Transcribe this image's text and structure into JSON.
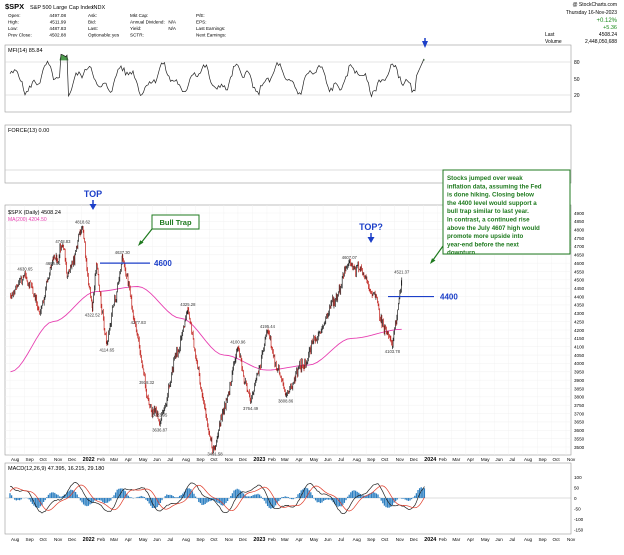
{
  "header": {
    "symbol": "$SPX",
    "name": "S&P 500 Large Cap Index",
    "exchange": "INDX",
    "credit": "@ StockCharts.com",
    "date": "Thursday 16-Nov-2023",
    "change_pct": "+0.12%",
    "change_abs": "+5.36",
    "last_label": "Last",
    "last_value": "4508.24",
    "volume_label": "Volume",
    "volume_value": "2,448,050,688",
    "col1": [
      {
        "k": "Open:",
        "v": "4497.08"
      },
      {
        "k": "High:",
        "v": "4511.99"
      },
      {
        "k": "Low:",
        "v": "4487.83"
      },
      {
        "k": "Prev Close:",
        "v": "4502.88"
      }
    ],
    "col2": [
      {
        "k": "Ask:",
        "v": ""
      },
      {
        "k": "Bid:",
        "v": ""
      },
      {
        "k": "Last:",
        "v": ""
      },
      {
        "k": "Optionable:",
        "v": "yes"
      }
    ],
    "col3": [
      {
        "k": "Mkt Cap:",
        "v": ""
      },
      {
        "k": "Annual Dividend:",
        "v": "N/A"
      },
      {
        "k": "Yield:",
        "v": "N/A"
      },
      {
        "k": "SCTR:",
        "v": ""
      }
    ],
    "col4": [
      {
        "k": "P/E:",
        "v": ""
      },
      {
        "k": "EPS:",
        "v": ""
      },
      {
        "k": "Last Earnings:",
        "v": ""
      },
      {
        "k": "Next Earnings:",
        "v": ""
      }
    ]
  },
  "panels": {
    "mfi_label": "MFI(14) 85.84",
    "mfi_ticks": [
      "80",
      "50",
      "20"
    ],
    "force_label": "FORCE(13) 0.00",
    "price_label": "$SPX (Daily) 4508.24",
    "ma_label": "MA(200) 4204.50",
    "macd_label": "MACD(12,26,9) 47.395, 16.215, 29.180"
  },
  "annotations": {
    "top1": "TOP",
    "top2": "TOP?",
    "bull_trap": "Bull Trap",
    "level_4600": "4600",
    "level_4400": "4400",
    "commentary": "Stocks jumped over weak inflation data, assuming the Fed is done hiking. Closing below the 4400 level would support a bull trap similar to last year. In contrast, a continued rise above the July 4607 high would promote more upside into year-end before the next downturn.",
    "pivots": [
      "4818.62",
      "4748.83",
      "4630.65",
      "4606.81",
      "4637.30",
      "4322.52",
      "4114.65",
      "4277.83",
      "4325.28",
      "3918.32",
      "3723.95",
      "3636.87",
      "3491.58",
      "4100.96",
      "4195.44",
      "3764.49",
      "3808.86",
      "4607.07",
      "4103.78",
      "4521.37"
    ]
  },
  "axes": {
    "months_top": [
      "Aug",
      "Sep",
      "Oct",
      "Nov",
      "Dec",
      "2022",
      "Feb",
      "Mar",
      "Apr",
      "May",
      "Jun",
      "Jul",
      "Aug",
      "Sep",
      "Oct",
      "Nov",
      "Dec",
      "2023",
      "Feb",
      "Mar",
      "Apr",
      "May",
      "Jun",
      "Jul",
      "Aug",
      "Sep",
      "Oct",
      "Nov",
      "Dec",
      "2024",
      "Feb",
      "Mar",
      "Apr",
      "May",
      "Jun",
      "Jul",
      "Aug",
      "Sep",
      "Oct",
      "Nov"
    ],
    "months_bottom": [
      "Aug",
      "Sep",
      "Oct",
      "Nov",
      "Dec",
      "2022",
      "Feb",
      "Mar",
      "Apr",
      "May",
      "Jun",
      "Jul",
      "Aug",
      "Sep",
      "Oct",
      "Nov",
      "Dec",
      "2023",
      "Feb",
      "Mar",
      "Apr",
      "May",
      "Jun",
      "Jul",
      "Aug",
      "Sep",
      "Oct",
      "Nov",
      "Dec",
      "2024",
      "Feb",
      "Mar",
      "Apr",
      "May",
      "Jun",
      "Jul",
      "Aug",
      "Sep",
      "Oct",
      "Nov"
    ],
    "price_ticks": [
      "4900",
      "4850",
      "4800",
      "4750",
      "4700",
      "4650",
      "4600",
      "4550",
      "4500",
      "4450",
      "4400",
      "4350",
      "4300",
      "4250",
      "4200",
      "4150",
      "4100",
      "4050",
      "4000",
      "3950",
      "3900",
      "3850",
      "3800",
      "3750",
      "3700",
      "3650",
      "3600",
      "3550",
      "3500"
    ],
    "macd_ticks": [
      "100",
      "50",
      "0",
      "-50",
      "-100",
      "-150"
    ]
  },
  "chart_data": {
    "type": "line",
    "title": "$SPX S&P 500 Large Cap Index INDX",
    "x_start": "2021-08",
    "x_end": "2024-11",
    "ylim": [
      3470,
      4930
    ],
    "series": [
      {
        "name": "$SPX (Daily)",
        "color": "#000000",
        "points": [
          [
            "2021-08-02",
            4400
          ],
          [
            "2021-09-02",
            4537
          ],
          [
            "2021-10-04",
            4300
          ],
          [
            "2021-11-01",
            4630
          ],
          [
            "2021-11-22",
            4704
          ],
          [
            "2021-12-01",
            4513
          ],
          [
            "2022-01-03",
            4818
          ],
          [
            "2022-01-24",
            4322
          ],
          [
            "2022-02-02",
            4590
          ],
          [
            "2022-02-24",
            4114
          ],
          [
            "2022-03-29",
            4637
          ],
          [
            "2022-05-02",
            4150
          ],
          [
            "2022-05-20",
            3810
          ],
          [
            "2022-06-17",
            3636
          ],
          [
            "2022-08-16",
            4325
          ],
          [
            "2022-09-30",
            3585
          ],
          [
            "2022-10-13",
            3491
          ],
          [
            "2022-12-01",
            4100
          ],
          [
            "2022-12-28",
            3764
          ],
          [
            "2023-02-02",
            4195
          ],
          [
            "2023-03-13",
            3808
          ],
          [
            "2023-06-01",
            4220
          ],
          [
            "2023-07-27",
            4607
          ],
          [
            "2023-09-01",
            4515
          ],
          [
            "2023-10-27",
            4103
          ],
          [
            "2023-11-16",
            4508
          ]
        ]
      },
      {
        "name": "MA(200)",
        "color": "#e73fb1",
        "points": [
          [
            "2021-08-02",
            3950
          ],
          [
            "2021-11-01",
            4250
          ],
          [
            "2022-02-01",
            4430
          ],
          [
            "2022-05-01",
            4460
          ],
          [
            "2022-08-01",
            4270
          ],
          [
            "2022-11-01",
            4050
          ],
          [
            "2023-02-01",
            3960
          ],
          [
            "2023-05-01",
            3990
          ],
          [
            "2023-08-01",
            4150
          ],
          [
            "2023-11-16",
            4204
          ]
        ]
      }
    ],
    "levels": [
      {
        "label": "4600",
        "value": 4600
      },
      {
        "label": "4400",
        "value": 4400
      }
    ]
  }
}
